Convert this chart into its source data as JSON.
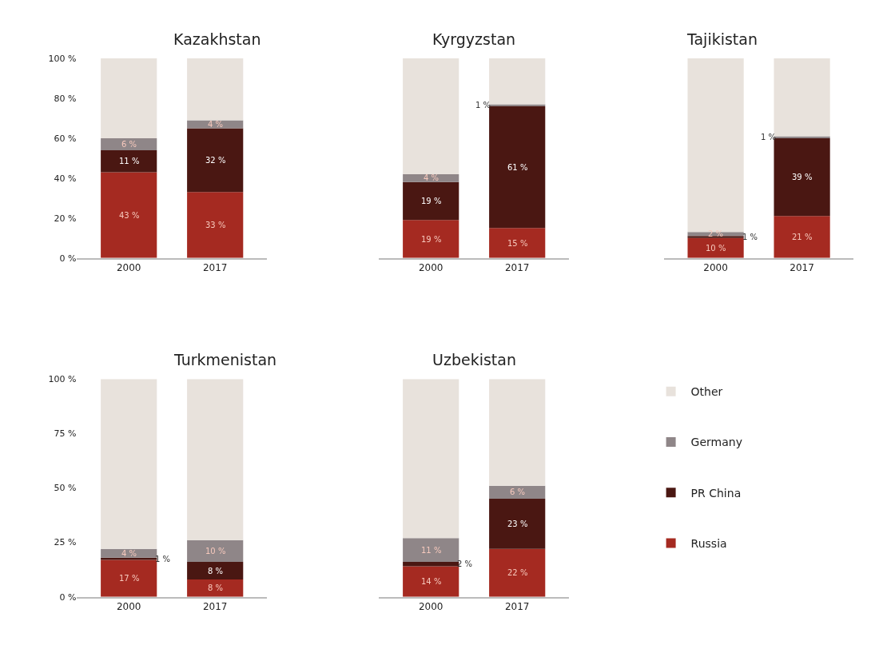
{
  "chart_data": [
    {
      "type": "bar",
      "title": "Kazakhstan",
      "categories": [
        "2000",
        "2017"
      ],
      "stacked": true,
      "ylim": [
        0,
        100
      ],
      "yticks": [
        {
          "value": 0,
          "label": "0 %"
        },
        {
          "value": 20,
          "label": "20 %"
        },
        {
          "value": 40,
          "label": "40 %"
        },
        {
          "value": 60,
          "label": "60 %"
        },
        {
          "value": 80,
          "label": "80 %"
        },
        {
          "value": 100,
          "label": "100 %"
        }
      ],
      "grid": false,
      "legend": false,
      "series": [
        {
          "color": "#a52a21",
          "values": [
            43,
            33
          ],
          "value_labels": [
            "43 %",
            "33 %"
          ]
        },
        {
          "color": "#4a1712",
          "values": [
            11,
            32
          ],
          "value_labels": [
            "11 %",
            "32 %"
          ]
        },
        {
          "color": "#8f8688",
          "values": [
            6,
            4
          ],
          "value_labels": [
            "6 %",
            "4 %"
          ]
        },
        {
          "color": "#e8e2dc",
          "values": [
            40,
            31
          ],
          "value_labels": [
            null,
            null
          ]
        }
      ]
    },
    {
      "type": "bar",
      "title": "Kyrgyzstan",
      "categories": [
        "2000",
        "2017"
      ],
      "stacked": true,
      "ylim": [
        0,
        100
      ],
      "tick_labels": "x",
      "grid": false,
      "legend": false,
      "series": [
        {
          "color": "#a52a21",
          "values": [
            19,
            15
          ],
          "value_labels": [
            "19 %",
            "15 %"
          ]
        },
        {
          "color": "#4a1712",
          "values": [
            19,
            61
          ],
          "value_labels": [
            "19 %",
            "61 %"
          ]
        },
        {
          "color": "#8f8688",
          "values": [
            4,
            1
          ],
          "value_labels": [
            "4 %",
            "1 %"
          ]
        },
        {
          "color": "#e8e2dc",
          "values": [
            58,
            23
          ],
          "value_labels": [
            null,
            null
          ]
        }
      ]
    },
    {
      "type": "bar",
      "title": "Tajikistan",
      "categories": [
        "2000",
        "2017"
      ],
      "stacked": true,
      "ylim": [
        0,
        100
      ],
      "tick_labels": "x",
      "grid": false,
      "legend": false,
      "series": [
        {
          "color": "#a52a21",
          "values": [
            10,
            21
          ],
          "value_labels": [
            "10 %",
            "21 %"
          ]
        },
        {
          "color": "#4a1712",
          "values": [
            1,
            39
          ],
          "value_labels": [
            "1 %",
            "39 %"
          ]
        },
        {
          "color": "#8f8688",
          "values": [
            2,
            1
          ],
          "value_labels": [
            "2 %",
            "1 %"
          ]
        },
        {
          "color": "#e8e2dc",
          "values": [
            87,
            39
          ],
          "value_labels": [
            null,
            null
          ]
        }
      ]
    },
    {
      "type": "bar",
      "title": "Turkmenistan",
      "categories": [
        "2000",
        "2017"
      ],
      "stacked": true,
      "ylim": [
        0,
        100
      ],
      "yticks": [
        {
          "value": 0,
          "label": "0 %"
        },
        {
          "value": 25,
          "label": "25 %"
        },
        {
          "value": 50,
          "label": "50 %"
        },
        {
          "value": 75,
          "label": "75 %"
        },
        {
          "value": 100,
          "label": "100 %"
        }
      ],
      "grid": false,
      "legend": false,
      "series": [
        {
          "color": "#a52a21",
          "values": [
            17,
            8
          ],
          "value_labels": [
            "17 %",
            "8 %"
          ]
        },
        {
          "color": "#4a1712",
          "values": [
            1,
            8
          ],
          "value_labels": [
            "1 %",
            "8 %"
          ]
        },
        {
          "color": "#8f8688",
          "values": [
            4,
            10
          ],
          "value_labels": [
            "4 %",
            "10 %"
          ]
        },
        {
          "color": "#e8e2dc",
          "values": [
            78,
            74
          ],
          "value_labels": [
            null,
            null
          ]
        }
      ]
    },
    {
      "type": "bar",
      "title": "Uzbekistan",
      "categories": [
        "2000",
        "2017"
      ],
      "stacked": true,
      "ylim": [
        0,
        100
      ],
      "tick_labels": "x",
      "grid": false,
      "legend": "right",
      "series": [
        {
          "name": "Russia",
          "color": "#a52a21",
          "values": [
            14,
            22
          ],
          "value_labels": [
            "14 %",
            "22 %"
          ]
        },
        {
          "name": "PR China",
          "color": "#4a1712",
          "values": [
            2,
            23
          ],
          "value_labels": [
            "2 %",
            "23 %"
          ]
        },
        {
          "name": "Germany",
          "color": "#8f8688",
          "values": [
            11,
            6
          ],
          "value_labels": [
            "11 %",
            "6 %"
          ]
        },
        {
          "name": "Other",
          "color": "#e8e2dc",
          "values": [
            73,
            49
          ],
          "value_labels": [
            null,
            null
          ]
        }
      ]
    }
  ]
}
